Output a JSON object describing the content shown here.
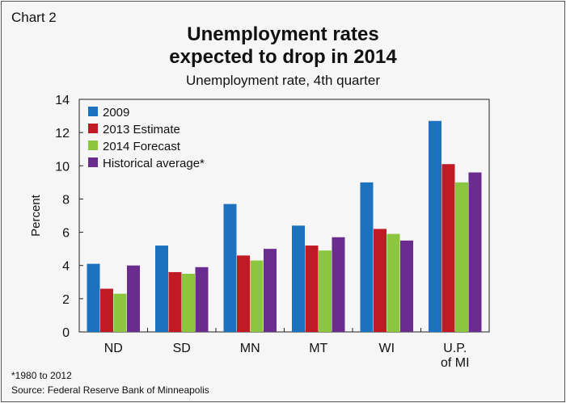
{
  "header": {
    "chart_label": "Chart 2",
    "title_line1": "Unemployment rates",
    "title_line2": "expected to drop in 2014",
    "subtitle": "Unemployment rate, 4th quarter"
  },
  "footer": {
    "footnote": "*1980 to 2012",
    "source": "Source: Federal Reserve Bank of Minneapolis"
  },
  "colors": {
    "s2009": "#1d72c0",
    "s2013": "#c01a24",
    "s2014": "#8cc63f",
    "hist": "#6a2c8f"
  },
  "chart_data": {
    "type": "bar",
    "title": "Unemployment rates expected to drop in 2014",
    "subtitle": "Unemployment rate, 4th quarter",
    "xlabel": "",
    "ylabel": "Percent",
    "ylim": [
      0,
      14
    ],
    "yticks": [
      0,
      2,
      4,
      6,
      8,
      10,
      12,
      14
    ],
    "grid": false,
    "legend_position": "top-left",
    "categories": [
      [
        "ND"
      ],
      [
        "SD"
      ],
      [
        "MN"
      ],
      [
        "MT"
      ],
      [
        "WI"
      ],
      [
        "U.P.",
        "of MI"
      ]
    ],
    "series": [
      {
        "name": "2009",
        "color": "#1d72c0",
        "values": [
          4.1,
          5.2,
          7.7,
          6.4,
          9.0,
          12.7
        ]
      },
      {
        "name": "2013 Estimate",
        "color": "#c01a24",
        "values": [
          2.6,
          3.6,
          4.6,
          5.2,
          6.2,
          10.1
        ]
      },
      {
        "name": "2014 Forecast",
        "color": "#8cc63f",
        "values": [
          2.3,
          3.5,
          4.3,
          4.9,
          5.9,
          9.0
        ]
      },
      {
        "name": "Historical average*",
        "color": "#6a2c8f",
        "values": [
          4.0,
          3.9,
          5.0,
          5.7,
          5.5,
          9.6
        ]
      }
    ]
  }
}
